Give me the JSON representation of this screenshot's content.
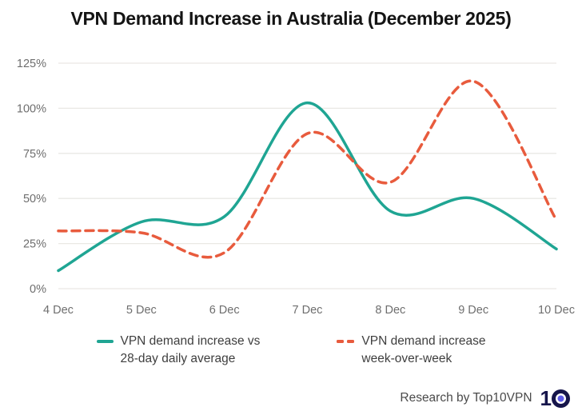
{
  "title": "VPN Demand Increase in Australia (December 2025)",
  "chart_data": {
    "type": "line",
    "categories": [
      "4 Dec",
      "5 Dec",
      "6 Dec",
      "7 Dec",
      "8 Dec",
      "9 Dec",
      "10 Dec"
    ],
    "series": [
      {
        "name": "VPN demand increase vs 28-day daily average",
        "color": "#1FA593",
        "line_style": "solid",
        "values": [
          10,
          37,
          40,
          103,
          43,
          50,
          22
        ]
      },
      {
        "name": "VPN demand increase week-over-week",
        "color": "#E85B3D",
        "line_style": "dashed",
        "values": [
          32,
          31,
          20,
          86,
          59,
          115,
          38
        ]
      }
    ],
    "xlabel": "",
    "ylabel": "",
    "yticks": [
      0,
      25,
      50,
      75,
      100,
      125
    ],
    "ytick_labels": [
      "0%",
      "25%",
      "50%",
      "75%",
      "100%",
      "125%"
    ],
    "ylim": [
      0,
      125
    ],
    "grid": "horizontal",
    "legend_position": "bottom",
    "curve": "smooth-spline"
  },
  "legend": {
    "items": [
      {
        "lines": [
          "VPN demand increase vs",
          "28-day daily average"
        ],
        "color": "#1FA593",
        "swatch": "solid"
      },
      {
        "lines": [
          "VPN demand increase",
          "week-over-week"
        ],
        "color": "#E85B3D",
        "swatch": "dashed"
      }
    ]
  },
  "footer": {
    "credit": "Research by Top10VPN",
    "logo_digit": "1",
    "logo_alt": "Top10VPN logo"
  },
  "colors": {
    "background": "#FFFFFF",
    "grid": "#E9E8E4",
    "tick_text": "#6E6E6E",
    "title_text": "#141414",
    "legend_text": "#3E3E3E",
    "footer_text": "#4A4A4A",
    "logo_navy": "#16154B",
    "logo_dot": "#5E5BE8"
  }
}
